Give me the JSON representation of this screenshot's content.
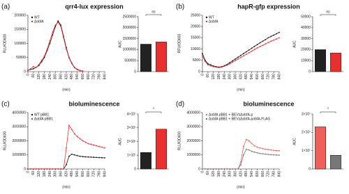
{
  "chart_data": [
    {
      "type": "line",
      "panel": "(a)",
      "title": "qrr4-lux expression",
      "y_label": "RLU/OD600",
      "x_label": "(min)",
      "x": [
        0,
        30,
        60,
        90,
        120,
        150,
        180,
        210,
        240,
        270,
        300,
        330,
        360,
        390,
        420,
        450,
        480,
        510,
        540,
        570,
        600,
        630,
        660,
        690,
        720,
        750,
        780,
        810,
        840
      ],
      "xlim": [
        0,
        840
      ],
      "xticks": [
        0,
        60,
        120,
        180,
        240,
        300,
        360,
        420,
        480,
        540,
        600,
        660,
        720,
        780,
        840
      ],
      "ylim": [
        0,
        200000
      ],
      "yticks": [
        0,
        50000,
        100000,
        150000,
        200000
      ],
      "legend": "upper left",
      "series": [
        {
          "name": "WT",
          "color": "#111111",
          "values": [
            5000,
            8000,
            10000,
            15000,
            22000,
            35000,
            50000,
            75000,
            100000,
            130000,
            160000,
            180000,
            165000,
            125000,
            85000,
            50000,
            30000,
            15000,
            8000,
            4000,
            2000,
            null,
            null,
            null,
            null,
            null,
            null,
            null,
            null
          ]
        },
        {
          "name": "ΔobfA",
          "color": "#e8312f",
          "values": [
            5000,
            10000,
            18000,
            15000,
            25000,
            40000,
            55000,
            80000,
            110000,
            140000,
            165000,
            175000,
            160000,
            120000,
            80000,
            48000,
            28000,
            14000,
            7000,
            3500,
            2000,
            null,
            null,
            null,
            null,
            null,
            null,
            null,
            null
          ]
        }
      ]
    },
    {
      "type": "bar",
      "y_label": "AUC",
      "categories": [
        null,
        null
      ],
      "values": [
        1250000,
        1350000
      ],
      "colors": [
        "#222222",
        "#e8312f"
      ],
      "ylim": [
        0,
        2500000
      ],
      "yticks": [
        0,
        500000,
        1000000,
        1500000,
        2000000,
        2500000
      ],
      "annotation": "ns"
    },
    {
      "type": "line",
      "panel": "(b)",
      "title": "hapR-gfp expression",
      "y_label": "RFU/OD600",
      "x_label": "(min)",
      "x": [
        0,
        30,
        60,
        90,
        120,
        150,
        180,
        210,
        240,
        270,
        300,
        330,
        360,
        390,
        420,
        450,
        480,
        510,
        540,
        570,
        600,
        630,
        660,
        690,
        720,
        750,
        780,
        810,
        840
      ],
      "xlim": [
        0,
        840
      ],
      "xticks": [
        0,
        60,
        120,
        180,
        240,
        300,
        360,
        420,
        480,
        540,
        600,
        660,
        720,
        780,
        840
      ],
      "ylim": [
        0,
        25000
      ],
      "yticks": [
        0,
        5000,
        10000,
        15000,
        20000,
        25000
      ],
      "legend": "upper left",
      "series": [
        {
          "name": "WT",
          "color": "#111111",
          "values": [
            8000,
            5000,
            3500,
            3000,
            2500,
            2200,
            2000,
            2200,
            2600,
            3200,
            4000,
            4800,
            5600,
            6400,
            7200,
            8000,
            8800,
            9600,
            10400,
            11200,
            12000,
            12800,
            13500,
            14200,
            15000,
            15600,
            16200,
            16800,
            17400
          ]
        },
        {
          "name": "ΔobfA",
          "color": "#e8312f",
          "values": [
            7000,
            4500,
            3000,
            2600,
            2200,
            2000,
            1800,
            2000,
            2400,
            2900,
            3500,
            4200,
            4900,
            5600,
            6300,
            7000,
            7700,
            8400,
            9100,
            9800,
            10500,
            11100,
            11700,
            12300,
            12900,
            13500,
            14000,
            14500,
            15000
          ]
        }
      ]
    },
    {
      "type": "bar",
      "y_label": "AUC",
      "categories": [
        null,
        null
      ],
      "values": [
        20000,
        17000
      ],
      "colors": [
        "#222222",
        "#e8312f"
      ],
      "ylim": [
        0,
        50000
      ],
      "yticks": [
        0,
        10000,
        20000,
        30000,
        40000,
        50000
      ],
      "annotation": "ns"
    },
    {
      "type": "line",
      "panel": "(c)",
      "title": "bioluminescence",
      "y_label": "RLU/OD600",
      "x_label": "(min)",
      "x": [
        0,
        30,
        60,
        90,
        120,
        150,
        180,
        210,
        240,
        270,
        300,
        330,
        360,
        390,
        420,
        450,
        480,
        510,
        540,
        570,
        600,
        630,
        660,
        690,
        720,
        750,
        780,
        810,
        840
      ],
      "xlim": [
        0,
        840
      ],
      "xticks": [
        0,
        60,
        120,
        180,
        240,
        300,
        360,
        420,
        480,
        540,
        600,
        660,
        720,
        780,
        840
      ],
      "ylim": [
        0,
        4000000
      ],
      "yticks": [
        0,
        1000000,
        2000000,
        3000000,
        4000000
      ],
      "legend": "upper left",
      "series": [
        {
          "name": "WT pBB1",
          "color": "#111111",
          "values": [
            0,
            0,
            0,
            0,
            0,
            0,
            0,
            0,
            0,
            0,
            0,
            0,
            0,
            0,
            300000,
            900000,
            1050000,
            1000000,
            950000,
            900000,
            880000,
            860000,
            850000,
            840000,
            830000,
            820000,
            810000,
            800000,
            790000
          ]
        },
        {
          "name": "ΔobfA pBB1",
          "color": "#e8312f",
          "values": [
            0,
            0,
            0,
            0,
            0,
            0,
            0,
            0,
            0,
            0,
            0,
            0,
            0,
            0,
            1500000,
            3100000,
            2800000,
            2500000,
            2300000,
            2150000,
            2000000,
            1900000,
            1800000,
            1750000,
            1700000,
            1650000,
            1600000,
            1550000,
            1500000
          ]
        }
      ]
    },
    {
      "type": "bar",
      "y_label": "AUC",
      "categories": [
        null,
        null
      ],
      "values": [
        12000000,
        29000000
      ],
      "colors": [
        "#222222",
        "#e8312f"
      ],
      "ylim": [
        0,
        40000000
      ],
      "yticks": [
        0,
        {
          "value": 10000000,
          "label": "1×10⁷"
        },
        {
          "value": 20000000,
          "label": "2×10⁷"
        },
        {
          "value": 30000000,
          "label": "3×10⁷"
        },
        {
          "value": 40000000,
          "label": "4×10⁷"
        }
      ],
      "annotation": "*"
    },
    {
      "type": "line",
      "panel": "(d)",
      "title": "bioluminescence",
      "y_label": "RLU/OD600",
      "x_label": "(min)",
      "x": [
        0,
        30,
        60,
        90,
        120,
        150,
        180,
        210,
        240,
        270,
        300,
        330,
        360,
        390,
        420,
        450,
        480,
        510,
        540,
        570,
        600,
        630,
        660,
        690,
        720,
        750,
        780,
        810,
        840
      ],
      "xlim": [
        0,
        840
      ],
      "xticks": [
        0,
        60,
        120,
        180,
        240,
        300,
        360,
        420,
        480,
        540,
        600,
        660,
        720,
        780,
        840
      ],
      "ylim": [
        0,
        4000000
      ],
      "yticks": [
        0,
        1000000,
        2000000,
        3000000,
        4000000
      ],
      "legend": "upper left",
      "series": [
        {
          "name": "ΔobfA pBB1 + BEVsΔobfA-p",
          "color": "#f0605a",
          "values": [
            0,
            0,
            0,
            0,
            0,
            0,
            0,
            0,
            0,
            0,
            0,
            0,
            0,
            0,
            500000,
            1600000,
            2100000,
            2000000,
            1800000,
            1650000,
            1550000,
            1500000,
            1450000,
            1400000,
            1380000,
            1350000,
            1320000,
            1300000,
            1300000
          ]
        },
        {
          "name": "ΔobfA pBB1 + BEVsΔobfA-pobfA-FLAG",
          "color": "#777777",
          "values": [
            0,
            0,
            0,
            0,
            0,
            0,
            0,
            0,
            0,
            0,
            0,
            0,
            0,
            0,
            300000,
            1000000,
            1400000,
            1350000,
            1250000,
            1200000,
            1150000,
            1100000,
            1080000,
            1050000,
            1030000,
            1010000,
            1000000,
            990000,
            980000
          ]
        }
      ]
    },
    {
      "type": "bar",
      "y_label": "AUC",
      "categories": [
        null,
        null
      ],
      "values": [
        23000000,
        7500000
      ],
      "colors": [
        "#f0605a",
        "#777777"
      ],
      "ylim": [
        0,
        30000000
      ],
      "yticks": [
        0,
        {
          "value": 10000000,
          "label": "1×10⁷"
        },
        {
          "value": 20000000,
          "label": "2×10⁷"
        },
        {
          "value": 30000000,
          "label": "3×10⁷"
        }
      ],
      "annotation": "*"
    }
  ]
}
